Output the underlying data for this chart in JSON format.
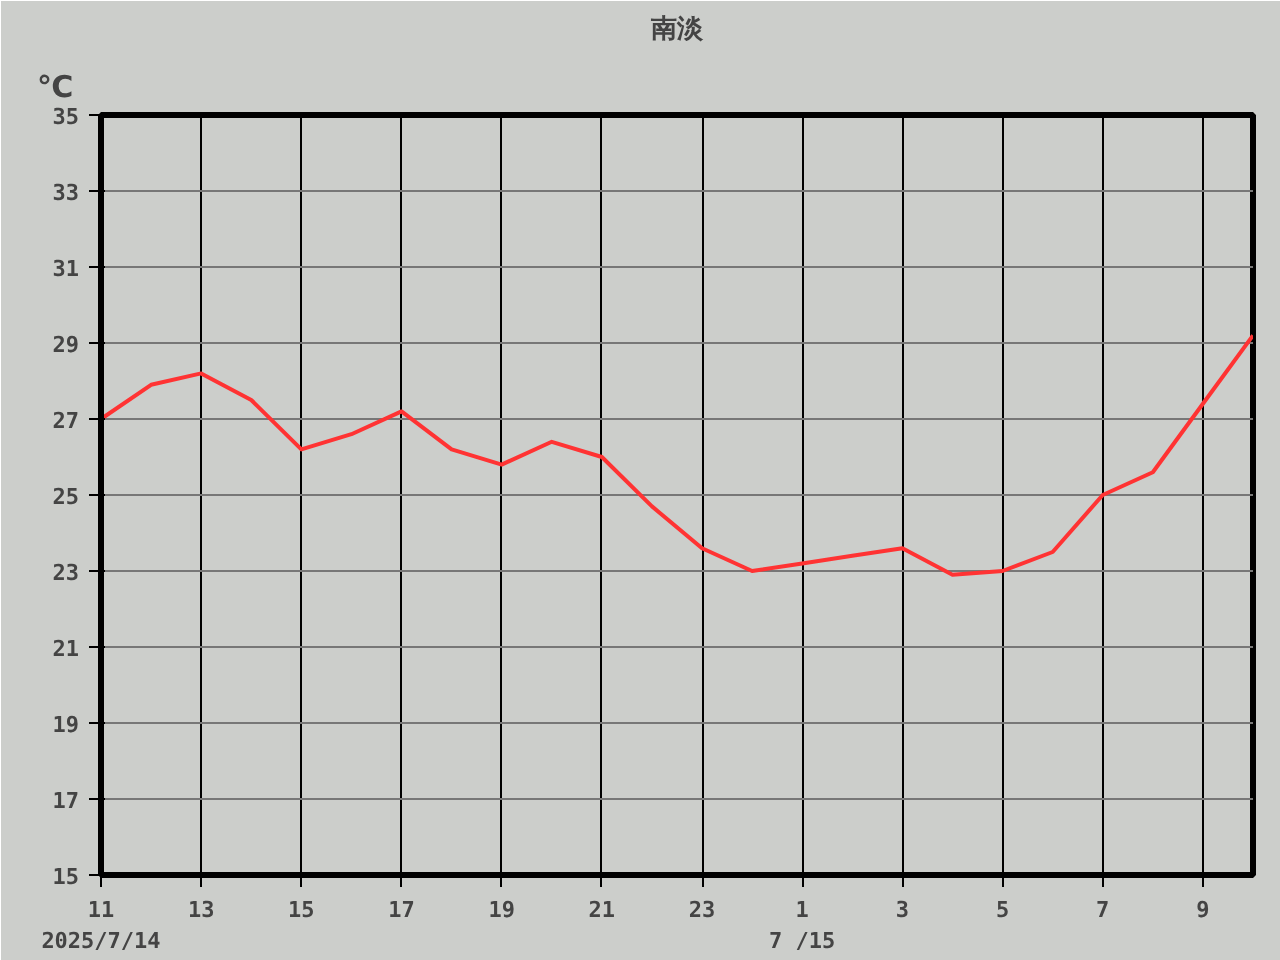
{
  "chart_data": {
    "type": "line",
    "title": "南淡",
    "ylabel": "℃",
    "categories": [
      "11\n2025/7/14",
      null,
      "13",
      null,
      "15",
      null,
      "17",
      null,
      "19",
      null,
      "21",
      null,
      "23",
      null,
      "1\n7 /15",
      null,
      "3",
      null,
      "5",
      null,
      "7",
      null,
      "9",
      null
    ],
    "series": [
      {
        "color": "#ff3333",
        "values": [
          27.0,
          27.9,
          28.2,
          27.5,
          26.2,
          26.6,
          27.2,
          26.2,
          25.8,
          26.4,
          26.0,
          24.7,
          23.6,
          23.0,
          23.2,
          23.4,
          23.6,
          22.9,
          23.0,
          23.5,
          25.0,
          25.6,
          27.4,
          29.2
        ]
      }
    ],
    "ylim": [
      15,
      35
    ],
    "yticks": [
      15,
      17,
      19,
      21,
      23,
      25,
      27,
      29,
      31,
      33,
      35
    ],
    "grid": true,
    "line_style": "solid"
  }
}
